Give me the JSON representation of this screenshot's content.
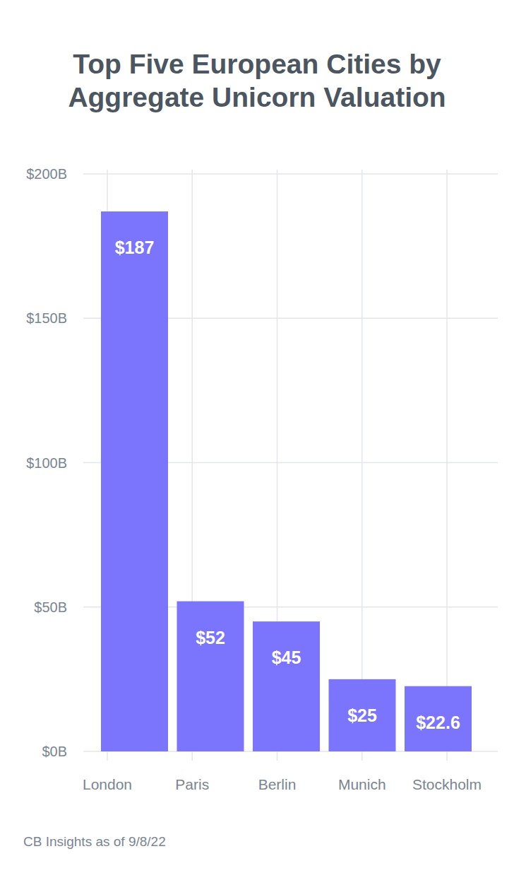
{
  "chart_data": {
    "type": "bar",
    "title": [
      "Top Five European Cities by",
      "Aggregate Unicorn Valuation"
    ],
    "categories": [
      "London",
      "Paris",
      "Berlin",
      "Munich",
      "Stockholm"
    ],
    "values": [
      187,
      52,
      45,
      25,
      22.6
    ],
    "value_labels": [
      "$187",
      "$52",
      "$45",
      "$25",
      "$22.6"
    ],
    "color": "#7b74fd",
    "ylim": [
      0,
      200
    ],
    "yticks": [
      {
        "value": 0,
        "label": "$0B"
      },
      {
        "value": 50,
        "label": "$50B"
      },
      {
        "value": 100,
        "label": "$100B"
      },
      {
        "value": 150,
        "label": "$150B"
      },
      {
        "value": 200,
        "label": "$200B"
      }
    ],
    "grid": true,
    "data_labels": true,
    "source": "CB Insights as of 9/8/22"
  }
}
